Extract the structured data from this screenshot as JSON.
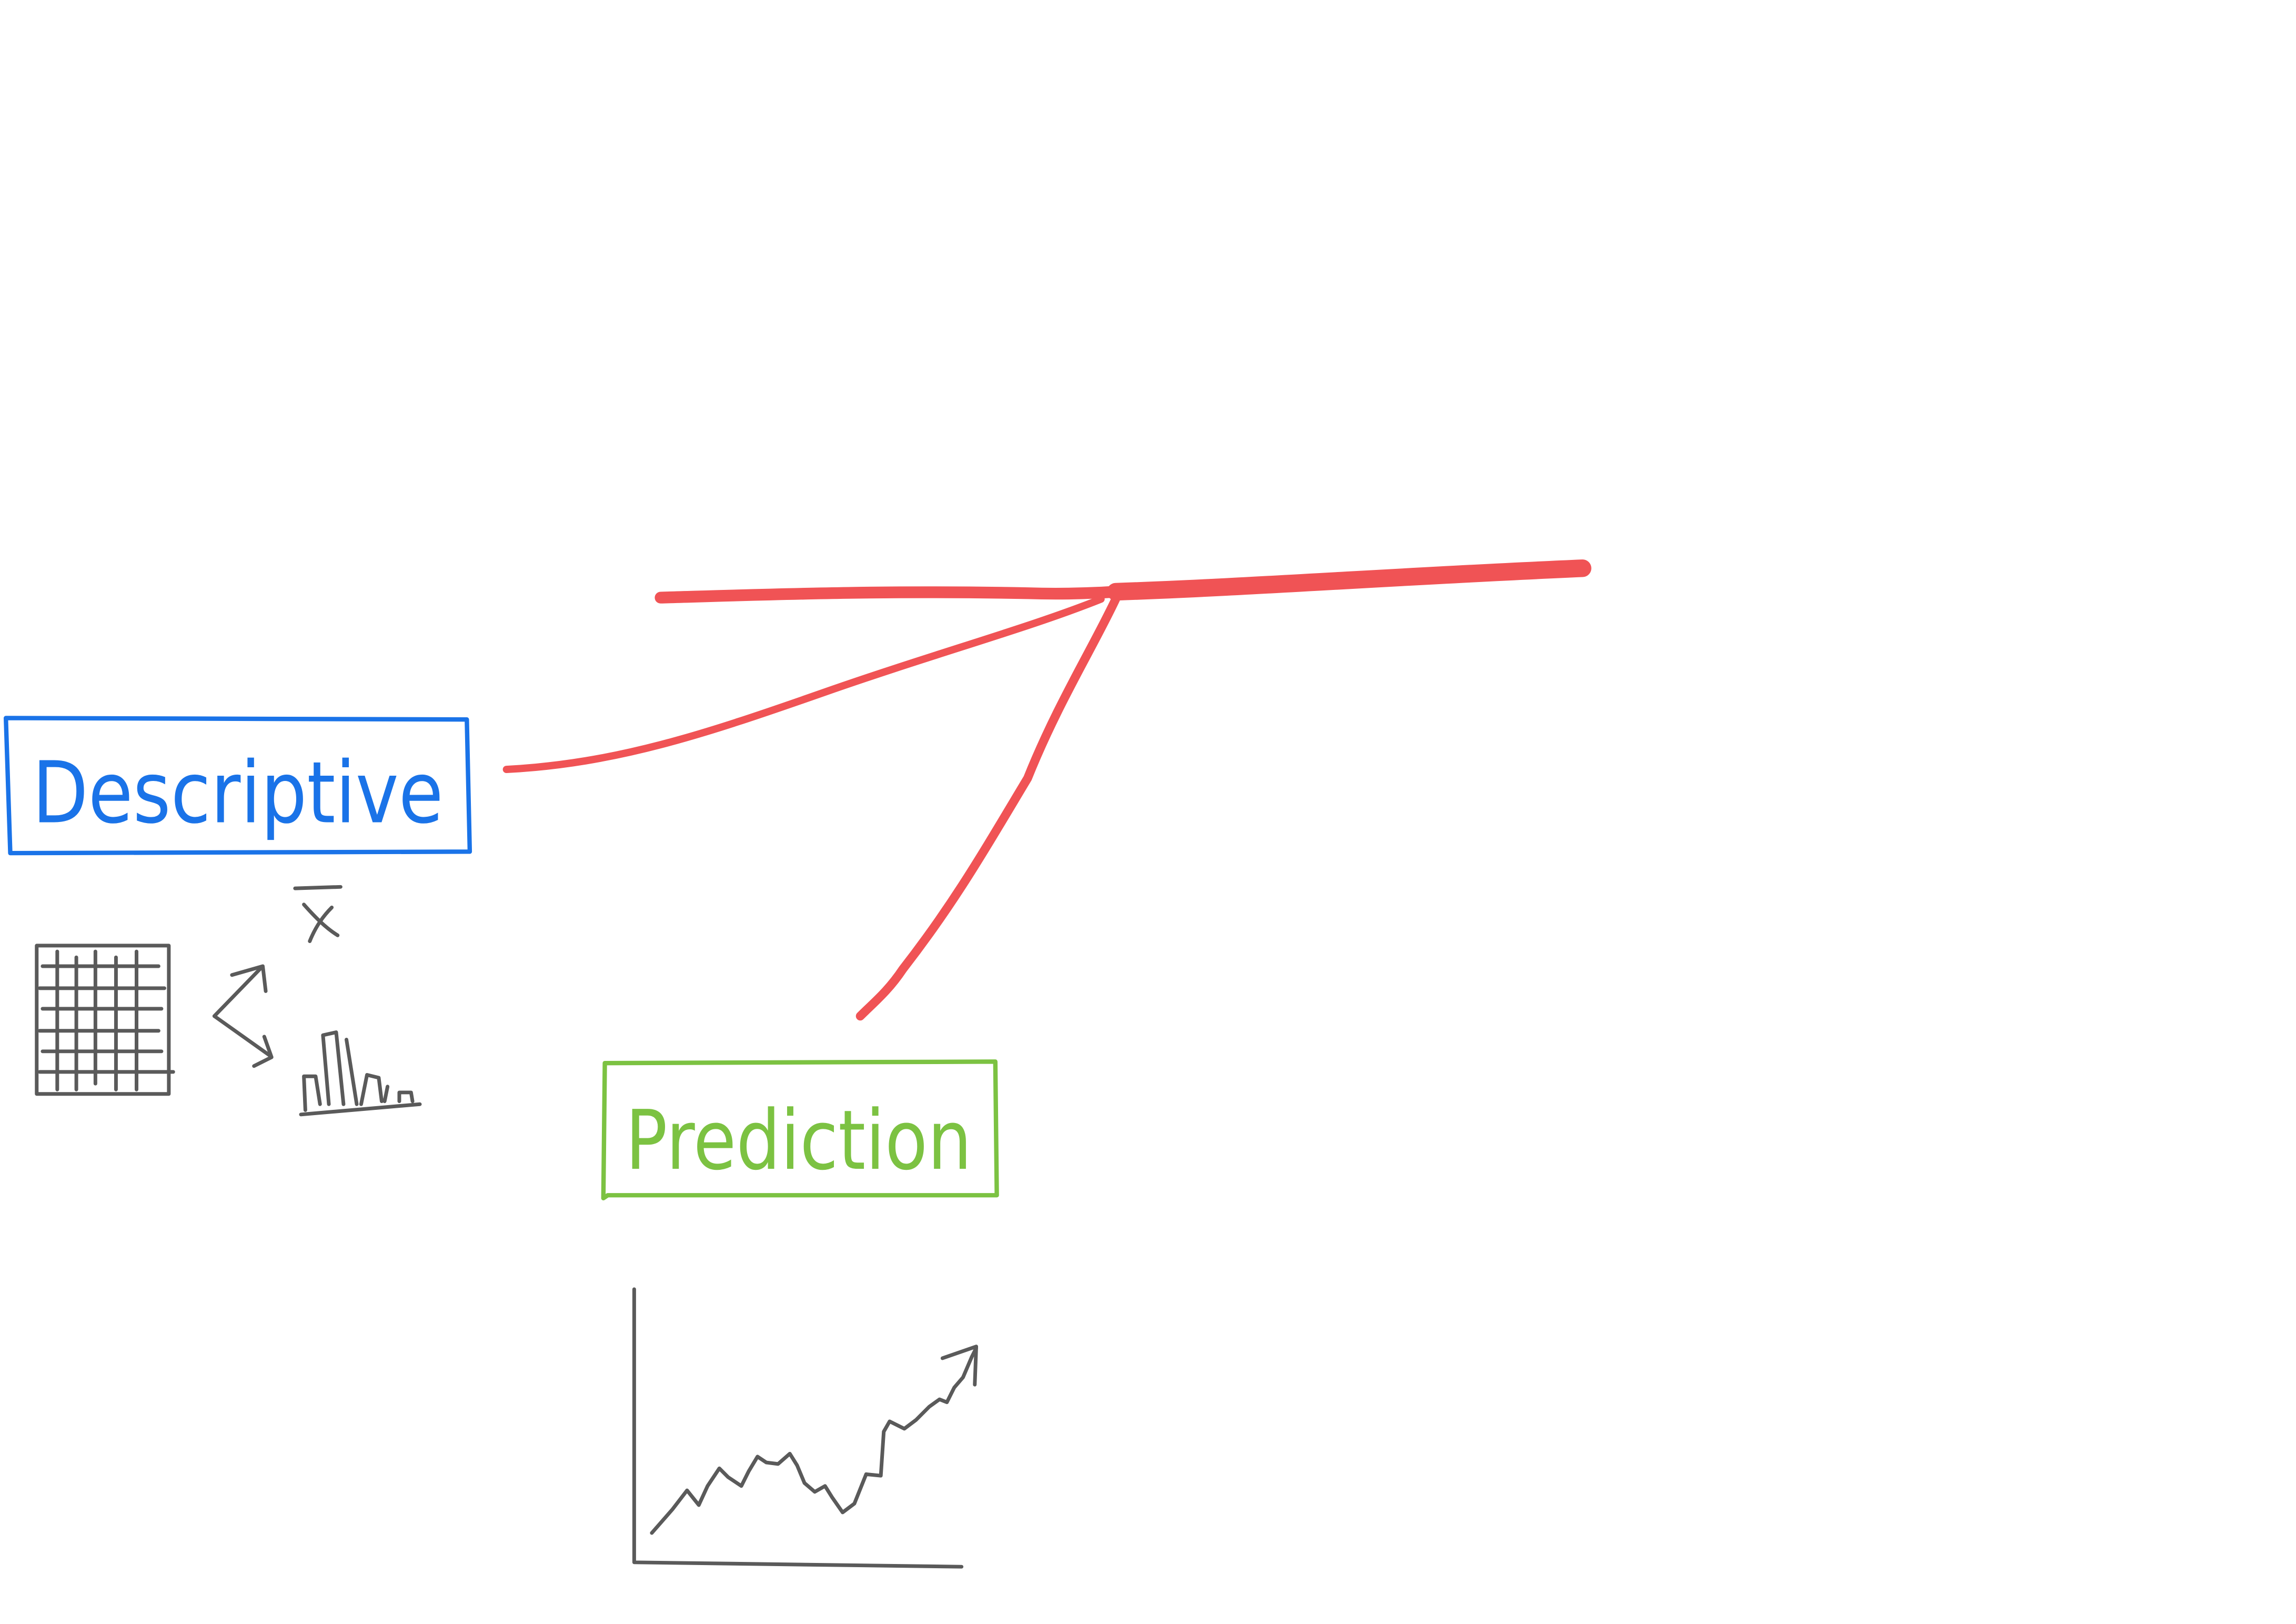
{
  "labels": {
    "descriptive": "Descriptive",
    "prediction": "Prediction",
    "mean_symbol": "x"
  },
  "colors": {
    "background": "#ffffff",
    "branch_red": "#f05355",
    "descriptive_blue": "#1a73e8",
    "prediction_green": "#7cc242",
    "icon_gray": "#5a5a5a"
  },
  "icons": {
    "table": "data-table-icon",
    "arrows": "split-arrows-icon",
    "mean": "x-bar-mean-icon",
    "histogram": "histogram-icon",
    "trend": "rising-line-chart-icon"
  }
}
